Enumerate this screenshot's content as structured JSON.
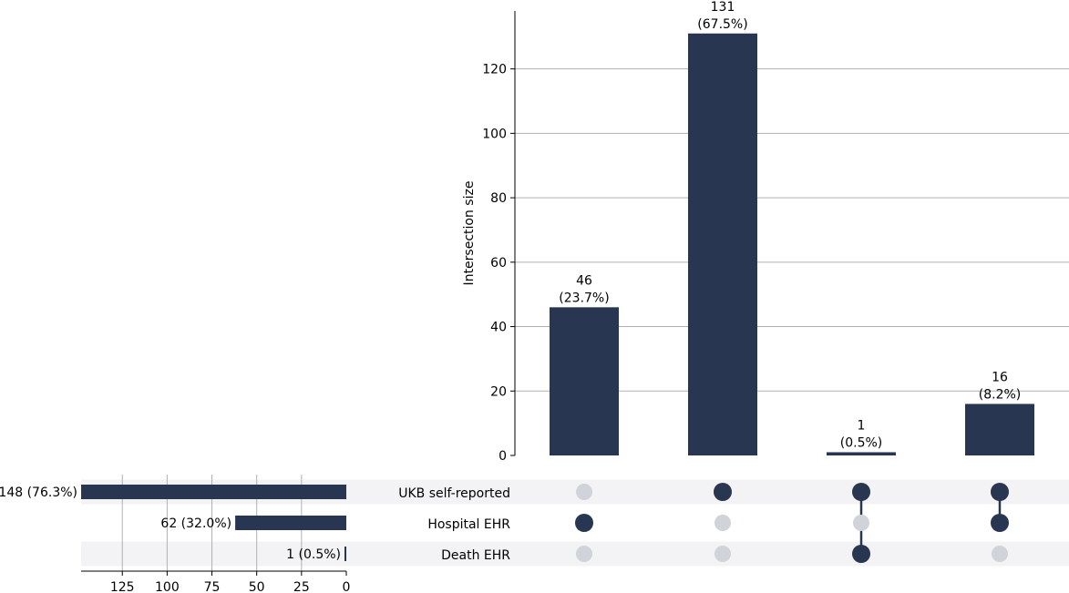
{
  "chart_data": {
    "type": "upset",
    "sets": [
      {
        "name": "UKB self-reported",
        "size": 148,
        "size_label": "148 (76.3%)"
      },
      {
        "name": "Hospital EHR",
        "size": 62,
        "size_label": "62 (32.0%)"
      },
      {
        "name": "Death EHR",
        "size": 1,
        "size_label": "1 (0.5%)"
      }
    ],
    "intersections": [
      {
        "members": [
          false,
          true,
          false
        ],
        "value": 46,
        "count_label": "46",
        "pct_label": "(23.7%)"
      },
      {
        "members": [
          true,
          false,
          false
        ],
        "value": 131,
        "count_label": "131",
        "pct_label": "(67.5%)"
      },
      {
        "members": [
          true,
          false,
          true
        ],
        "value": 1,
        "count_label": "1",
        "pct_label": "(0.5%)"
      },
      {
        "members": [
          true,
          true,
          false
        ],
        "value": 16,
        "count_label": "16",
        "pct_label": "(8.2%)"
      }
    ],
    "intersection_axis": {
      "ylabel": "Intersection size",
      "ylim": [
        0,
        138
      ],
      "ticks": [
        0,
        20,
        40,
        60,
        80,
        100,
        120
      ],
      "grid": true
    },
    "set_size_axis": {
      "xlim": [
        0,
        148
      ],
      "ticks": [
        125,
        100,
        75,
        50,
        25,
        0
      ],
      "grid": true,
      "direction": "reversed"
    },
    "colors": {
      "bar": "#283651",
      "dot_active": "#283651",
      "dot_inactive": "#d0d3d9",
      "row_shade": "#f3f3f5",
      "grid": "#b0b0b0"
    }
  }
}
